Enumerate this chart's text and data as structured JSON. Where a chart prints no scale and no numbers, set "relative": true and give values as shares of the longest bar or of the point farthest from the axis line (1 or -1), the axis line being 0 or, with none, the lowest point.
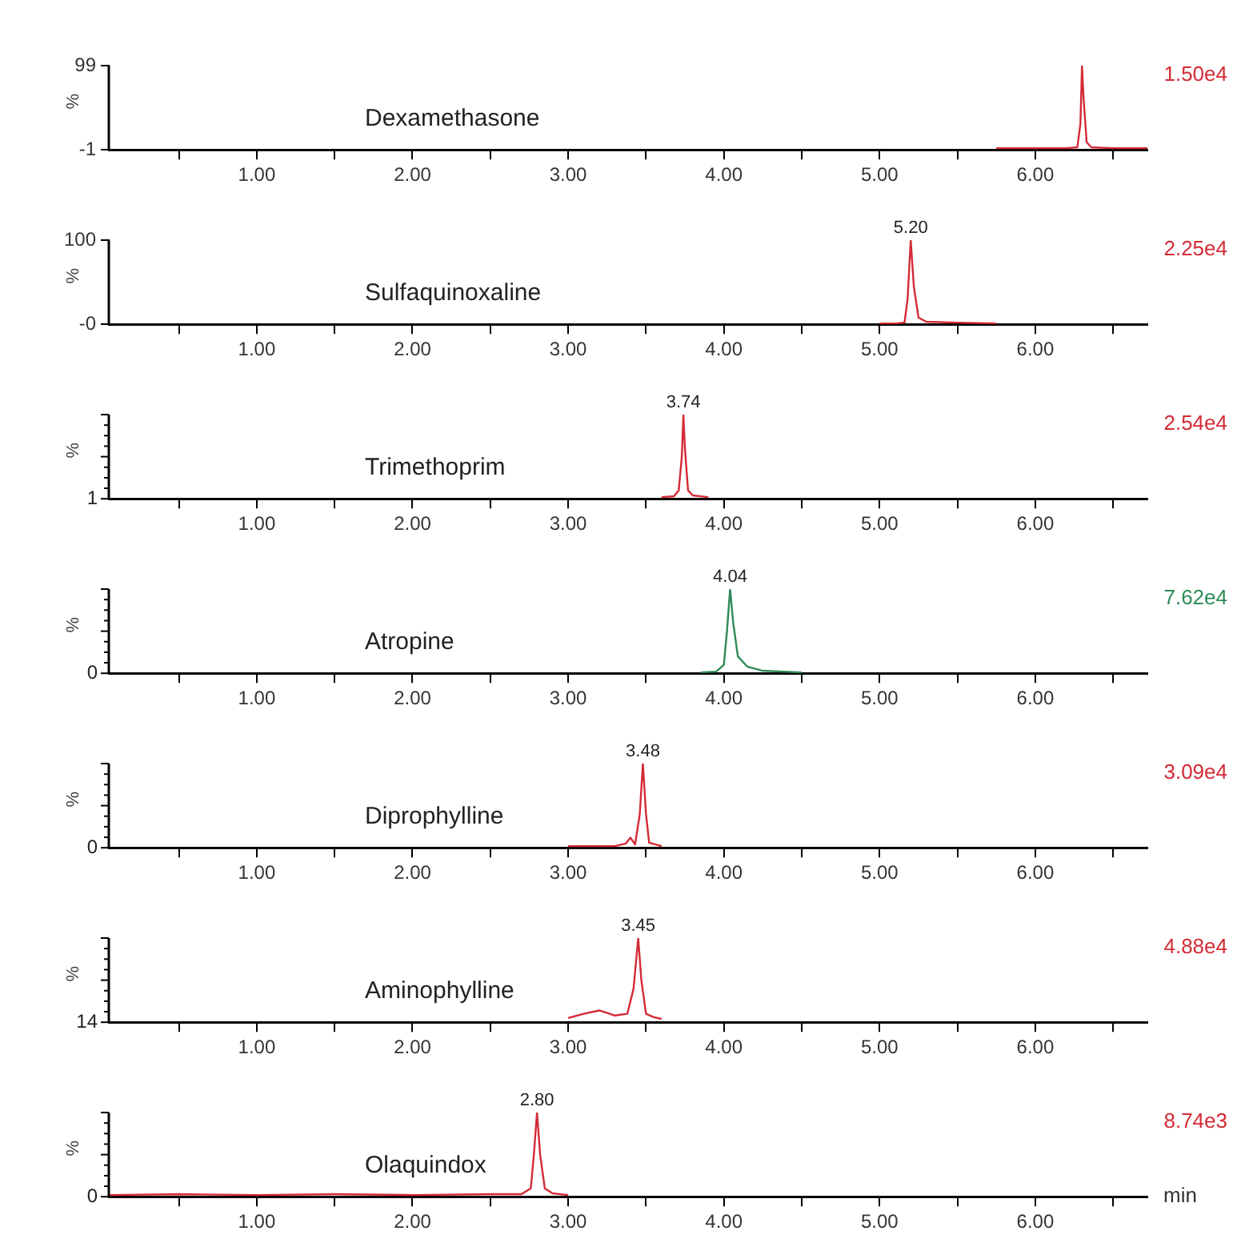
{
  "chart_data": [
    {
      "type": "line",
      "title": "Dexamethasone",
      "ylabel": "%",
      "xlim": [
        0.05,
        6.72
      ],
      "xticks": [
        {
          "value": 0.5,
          "label": null
        },
        {
          "value": 1,
          "label": "1.00"
        },
        {
          "value": 1.5,
          "label": null
        },
        {
          "value": 2,
          "label": "2.00"
        },
        {
          "value": 2.5,
          "label": null
        },
        {
          "value": 3,
          "label": "3.00"
        },
        {
          "value": 3.5,
          "label": null
        },
        {
          "value": 4,
          "label": "4.00"
        },
        {
          "value": 4.5,
          "label": null
        },
        {
          "value": 5,
          "label": "5.00"
        },
        {
          "value": 5.5,
          "label": null
        },
        {
          "value": 6,
          "label": "6.00"
        },
        {
          "value": 6.5,
          "label": null
        }
      ],
      "ylim": [
        -1,
        99
      ],
      "yticks": [
        99,
        -1
      ],
      "grid": false,
      "legend": false,
      "marker": "none",
      "annotations": [
        "1.50e4"
      ],
      "series": [
        {
          "color": "#d42a35",
          "x": [
            5.75,
            6.0,
            6.2,
            6.27,
            6.29,
            6.3,
            6.31,
            6.33,
            6.36,
            6.5,
            6.72
          ],
          "values": [
            1,
            1,
            1,
            2,
            30,
            99,
            60,
            8,
            2,
            1,
            1
          ]
        }
      ]
    },
    {
      "type": "line",
      "title": "Sulfaquinoxaline",
      "ylabel": "%",
      "xlim": [
        0.05,
        6.72
      ],
      "xticks": [
        {
          "value": 0.5,
          "label": null
        },
        {
          "value": 1,
          "label": "1.00"
        },
        {
          "value": 1.5,
          "label": null
        },
        {
          "value": 2,
          "label": "2.00"
        },
        {
          "value": 2.5,
          "label": null
        },
        {
          "value": 3,
          "label": "3.00"
        },
        {
          "value": 3.5,
          "label": null
        },
        {
          "value": 4,
          "label": "4.00"
        },
        {
          "value": 4.5,
          "label": null
        },
        {
          "value": 5,
          "label": "5.00"
        },
        {
          "value": 5.5,
          "label": null
        },
        {
          "value": 6,
          "label": "6.00"
        },
        {
          "value": 6.5,
          "label": null
        }
      ],
      "ylim": [
        0,
        100
      ],
      "yticks": [
        100,
        {
          "value": 0,
          "label": "-0"
        }
      ],
      "grid": false,
      "legend": false,
      "marker": "none",
      "annotations": [
        {
          "text": "5.20",
          "x": 5.2,
          "y": 100
        },
        "2.25e4"
      ],
      "series": [
        {
          "color": "#d42a35",
          "x": [
            5.0,
            5.1,
            5.16,
            5.18,
            5.2,
            5.22,
            5.25,
            5.3,
            5.5,
            5.75
          ],
          "values": [
            1,
            1,
            2,
            30,
            100,
            45,
            8,
            3,
            2,
            1
          ]
        }
      ]
    },
    {
      "type": "line",
      "title": "Trimethoprim",
      "ylabel": "%",
      "xlim": [
        0.05,
        6.72
      ],
      "xticks": [
        {
          "value": 0.5,
          "label": null
        },
        {
          "value": 1,
          "label": "1.00"
        },
        {
          "value": 1.5,
          "label": null
        },
        {
          "value": 2,
          "label": "2.00"
        },
        {
          "value": 2.5,
          "label": null
        },
        {
          "value": 3,
          "label": "3.00"
        },
        {
          "value": 3.5,
          "label": null
        },
        {
          "value": 4,
          "label": "4.00"
        },
        {
          "value": 4.5,
          "label": null
        },
        {
          "value": 5,
          "label": "5.00"
        },
        {
          "value": 5.5,
          "label": null
        },
        {
          "value": 6,
          "label": "6.00"
        },
        {
          "value": 6.5,
          "label": null
        }
      ],
      "relative": true,
      "grid": false,
      "legend": false,
      "marker": "none",
      "annotations": [
        "1",
        {
          "text": "3.74",
          "x": 3.74,
          "y": 1
        },
        "2.54e4"
      ],
      "series": [
        {
          "color": "#d42a35",
          "x": [
            3.6,
            3.68,
            3.71,
            3.73,
            3.74,
            3.75,
            3.77,
            3.8,
            3.9
          ],
          "values": [
            0.02,
            0.03,
            0.1,
            0.5,
            1,
            0.6,
            0.1,
            0.04,
            0.02
          ]
        }
      ]
    },
    {
      "type": "line",
      "title": "Atropine",
      "ylabel": "%",
      "xlim": [
        0.05,
        6.72
      ],
      "xticks": [
        {
          "value": 0.5,
          "label": null
        },
        {
          "value": 1,
          "label": "1.00"
        },
        {
          "value": 1.5,
          "label": null
        },
        {
          "value": 2,
          "label": "2.00"
        },
        {
          "value": 2.5,
          "label": null
        },
        {
          "value": 3,
          "label": "3.00"
        },
        {
          "value": 3.5,
          "label": null
        },
        {
          "value": 4,
          "label": "4.00"
        },
        {
          "value": 4.5,
          "label": null
        },
        {
          "value": 5,
          "label": "5.00"
        },
        {
          "value": 5.5,
          "label": null
        },
        {
          "value": 6,
          "label": "6.00"
        },
        {
          "value": 6.5,
          "label": null
        }
      ],
      "relative": true,
      "grid": false,
      "legend": false,
      "marker": "none",
      "annotations": [
        "0",
        {
          "text": "4.04",
          "x": 4.04,
          "y": 1
        },
        "7.62e4"
      ],
      "series": [
        {
          "color": "#2e8b57",
          "x": [
            3.85,
            3.95,
            4.0,
            4.02,
            4.04,
            4.06,
            4.09,
            4.15,
            4.25,
            4.5
          ],
          "values": [
            0.01,
            0.02,
            0.1,
            0.5,
            1,
            0.6,
            0.2,
            0.08,
            0.03,
            0.01
          ]
        }
      ]
    },
    {
      "type": "line",
      "title": "Diprophylline",
      "ylabel": "%",
      "xlim": [
        0.05,
        6.72
      ],
      "xticks": [
        {
          "value": 0.5,
          "label": null
        },
        {
          "value": 1,
          "label": "1.00"
        },
        {
          "value": 1.5,
          "label": null
        },
        {
          "value": 2,
          "label": "2.00"
        },
        {
          "value": 2.5,
          "label": null
        },
        {
          "value": 3,
          "label": "3.00"
        },
        {
          "value": 3.5,
          "label": null
        },
        {
          "value": 4,
          "label": "4.00"
        },
        {
          "value": 4.5,
          "label": null
        },
        {
          "value": 5,
          "label": "5.00"
        },
        {
          "value": 5.5,
          "label": null
        },
        {
          "value": 6,
          "label": "6.00"
        },
        {
          "value": 6.5,
          "label": null
        }
      ],
      "relative": true,
      "grid": false,
      "legend": false,
      "marker": "none",
      "annotations": [
        "0",
        {
          "text": "3.48",
          "x": 3.48,
          "y": 1
        },
        "3.09e4"
      ],
      "series": [
        {
          "color": "#d42a35",
          "x": [
            3.0,
            3.3,
            3.37,
            3.4,
            3.43,
            3.46,
            3.48,
            3.5,
            3.52,
            3.6
          ],
          "values": [
            0.02,
            0.02,
            0.05,
            0.12,
            0.04,
            0.4,
            1,
            0.4,
            0.06,
            0.02
          ]
        }
      ]
    },
    {
      "type": "line",
      "title": "Aminophylline",
      "ylabel": "%",
      "xlim": [
        0.05,
        6.72
      ],
      "xticks": [
        {
          "value": 0.5,
          "label": null
        },
        {
          "value": 1,
          "label": "1.00"
        },
        {
          "value": 1.5,
          "label": null
        },
        {
          "value": 2,
          "label": "2.00"
        },
        {
          "value": 2.5,
          "label": null
        },
        {
          "value": 3,
          "label": "3.00"
        },
        {
          "value": 3.5,
          "label": null
        },
        {
          "value": 4,
          "label": "4.00"
        },
        {
          "value": 4.5,
          "label": null
        },
        {
          "value": 5,
          "label": "5.00"
        },
        {
          "value": 5.5,
          "label": null
        },
        {
          "value": 6,
          "label": "6.00"
        },
        {
          "value": 6.5,
          "label": null
        }
      ],
      "relative": true,
      "grid": false,
      "legend": false,
      "marker": "none",
      "annotations": [
        "14",
        {
          "text": "3.45",
          "x": 3.45,
          "y": 1
        },
        "4.88e4"
      ],
      "series": [
        {
          "color": "#d42a35",
          "x": [
            3.0,
            3.1,
            3.2,
            3.3,
            3.38,
            3.42,
            3.45,
            3.47,
            3.5,
            3.55,
            3.6
          ],
          "values": [
            0.05,
            0.1,
            0.14,
            0.08,
            0.1,
            0.4,
            1,
            0.5,
            0.1,
            0.06,
            0.04
          ]
        }
      ]
    },
    {
      "type": "line",
      "title": "Olaquindox",
      "ylabel": "%",
      "xlabel": "min",
      "xlim": [
        0.05,
        6.72
      ],
      "xticks": [
        {
          "value": 0.5,
          "label": null
        },
        {
          "value": 1,
          "label": "1.00"
        },
        {
          "value": 1.5,
          "label": null
        },
        {
          "value": 2,
          "label": "2.00"
        },
        {
          "value": 2.5,
          "label": null
        },
        {
          "value": 3,
          "label": "3.00"
        },
        {
          "value": 3.5,
          "label": null
        },
        {
          "value": 4,
          "label": "4.00"
        },
        {
          "value": 4.5,
          "label": null
        },
        {
          "value": 5,
          "label": "5.00"
        },
        {
          "value": 5.5,
          "label": null
        },
        {
          "value": 6,
          "label": "6.00"
        },
        {
          "value": 6.5,
          "label": null
        }
      ],
      "relative": true,
      "grid": false,
      "legend": false,
      "marker": "none",
      "annotations": [
        "0",
        {
          "text": "2.80",
          "x": 2.8,
          "y": 1
        },
        "8.74e3"
      ],
      "series": [
        {
          "color": "#d42a35",
          "x": [
            0.05,
            0.5,
            1.0,
            1.5,
            2.0,
            2.5,
            2.7,
            2.76,
            2.78,
            2.8,
            2.82,
            2.85,
            2.9,
            3.0
          ],
          "values": [
            0.02,
            0.03,
            0.02,
            0.03,
            0.02,
            0.03,
            0.03,
            0.1,
            0.5,
            1,
            0.5,
            0.1,
            0.04,
            0.02
          ]
        }
      ]
    }
  ]
}
